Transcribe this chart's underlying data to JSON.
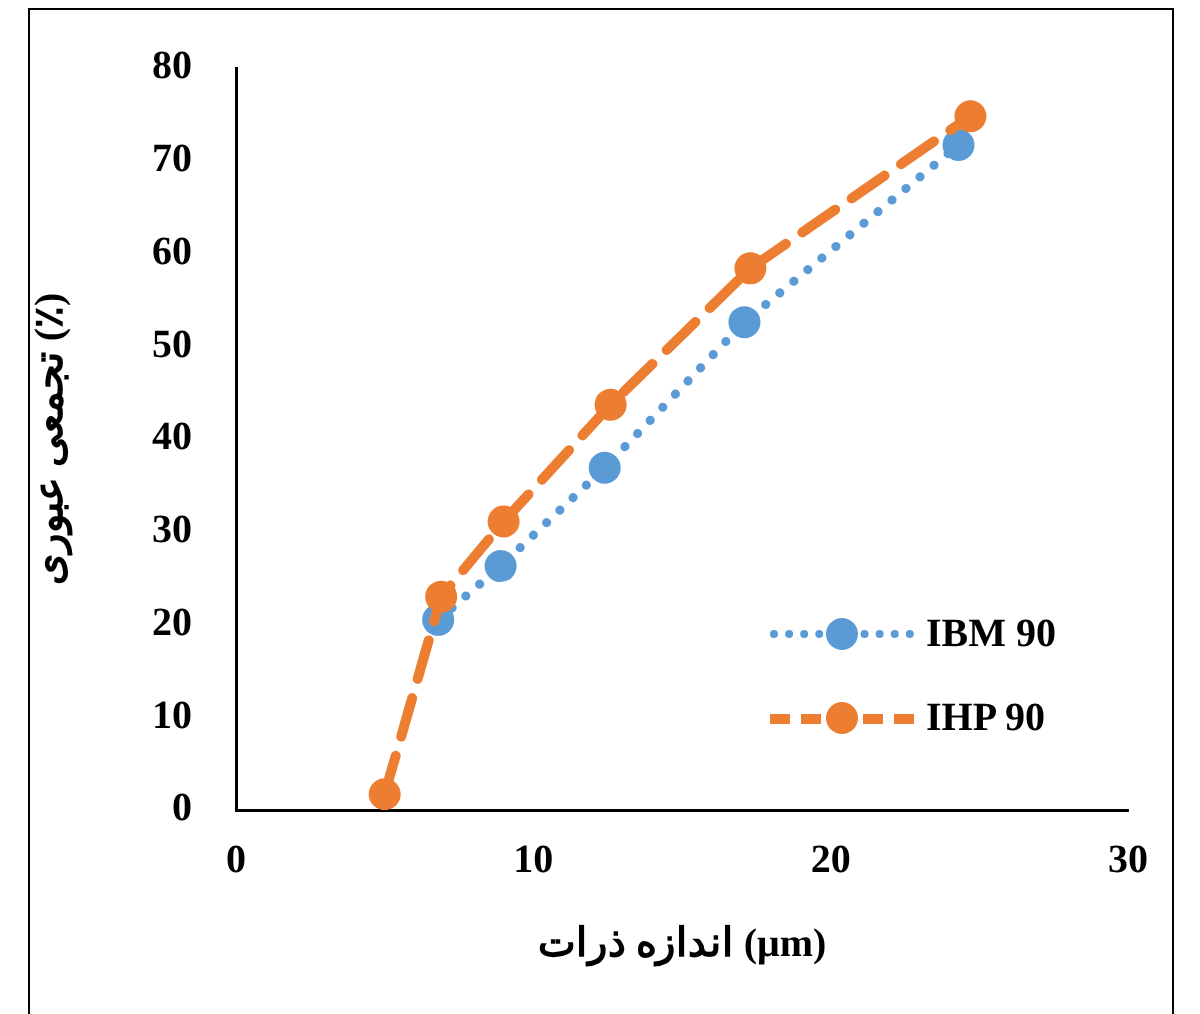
{
  "chart_data": {
    "type": "line",
    "xlabel": "اندازه ذرات (μm)",
    "ylabel": "تجمعی عبوری (٪)",
    "xlim": [
      0,
      30
    ],
    "xticks": [
      0,
      10,
      20,
      30
    ],
    "ylim": [
      0,
      80
    ],
    "yticks": [
      0,
      10,
      20,
      30,
      40,
      50,
      60,
      70,
      80
    ],
    "grid": false,
    "legend": "right",
    "marker": "circle",
    "series": [
      {
        "name": "IBM 90",
        "color": "#5b9bd5",
        "line_style": "dotted",
        "x": [
          6.8,
          8.9,
          12.4,
          17.1,
          24.3
        ],
        "values": [
          20.5,
          26.3,
          36.9,
          52.6,
          71.7
        ]
      },
      {
        "name": "IHP 90",
        "color": "#ed7d31",
        "line_style": "dashed",
        "x": [
          5.0,
          6.9,
          9.0,
          12.6,
          17.3,
          24.7
        ],
        "values": [
          1.7,
          23.0,
          31.1,
          43.7,
          58.4,
          74.8
        ]
      }
    ]
  }
}
